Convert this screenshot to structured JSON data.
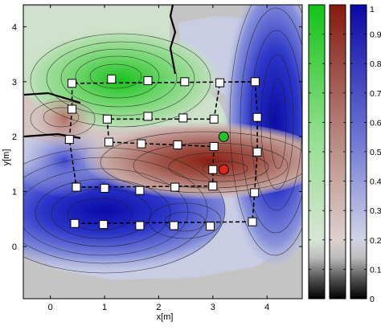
{
  "chart_data": {
    "type": "heatmap",
    "xlabel": "x[m]",
    "ylabel": "y[m]",
    "xlim": [
      -0.5,
      4.65
    ],
    "ylim": [
      -0.95,
      4.4
    ],
    "x_ticks": [
      "0",
      "1",
      "2",
      "3",
      "4"
    ],
    "y_ticks": [
      "0",
      "1",
      "2",
      "3",
      "4"
    ],
    "colorbar_ticks": [
      "0",
      "0.1",
      "0.2",
      "0.3",
      "0.4",
      "0.5",
      "0.6",
      "0.7",
      "0.8",
      "0.9",
      "1"
    ],
    "colormaps": [
      {
        "name": "green",
        "top": "#16c41a"
      },
      {
        "name": "brown",
        "top": "#8a1d10"
      },
      {
        "name": "blue",
        "top": "#0b0aa8"
      }
    ],
    "regions": [
      {
        "name": "green",
        "peak": 1.0
      },
      {
        "name": "brown",
        "peak": 1.0
      },
      {
        "name": "blue",
        "peak": 1.0
      }
    ],
    "waypoints": [
      {
        "x": 0.4,
        "y": 2.97
      },
      {
        "x": 1.13,
        "y": 3.05
      },
      {
        "x": 1.8,
        "y": 3.02
      },
      {
        "x": 2.48,
        "y": 3.0
      },
      {
        "x": 3.13,
        "y": 2.98
      },
      {
        "x": 3.78,
        "y": 3.0
      },
      {
        "x": 0.4,
        "y": 2.5
      },
      {
        "x": 3.82,
        "y": 2.35
      },
      {
        "x": 1.05,
        "y": 2.32
      },
      {
        "x": 1.8,
        "y": 2.37
      },
      {
        "x": 2.45,
        "y": 2.34
      },
      {
        "x": 3.02,
        "y": 2.32
      },
      {
        "x": 0.35,
        "y": 1.95
      },
      {
        "x": 1.08,
        "y": 1.9
      },
      {
        "x": 1.68,
        "y": 1.87
      },
      {
        "x": 2.35,
        "y": 1.85
      },
      {
        "x": 3.02,
        "y": 1.82
      },
      {
        "x": 3.82,
        "y": 1.72
      },
      {
        "x": 3.0,
        "y": 1.4
      },
      {
        "x": 0.48,
        "y": 1.08
      },
      {
        "x": 1.0,
        "y": 1.06
      },
      {
        "x": 1.65,
        "y": 1.02
      },
      {
        "x": 2.3,
        "y": 1.08
      },
      {
        "x": 3.0,
        "y": 1.1
      },
      {
        "x": 3.77,
        "y": 0.98
      },
      {
        "x": 0.45,
        "y": 0.42
      },
      {
        "x": 0.98,
        "y": 0.4
      },
      {
        "x": 1.65,
        "y": 0.38
      },
      {
        "x": 2.28,
        "y": 0.38
      },
      {
        "x": 2.95,
        "y": 0.37
      },
      {
        "x": 3.73,
        "y": 0.45
      }
    ],
    "path": [
      [
        0.45,
        0.42
      ],
      [
        3.73,
        0.45
      ],
      [
        3.77,
        0.98
      ],
      [
        3.82,
        1.72
      ],
      [
        3.82,
        2.35
      ],
      [
        3.78,
        3.0
      ],
      [
        0.4,
        2.97
      ],
      [
        0.4,
        2.5
      ],
      [
        0.35,
        1.95
      ],
      [
        0.48,
        1.08
      ],
      [
        3.0,
        1.1
      ],
      [
        3.0,
        1.4
      ],
      [
        3.02,
        1.82
      ],
      [
        1.08,
        1.9
      ],
      [
        1.05,
        2.32
      ],
      [
        3.02,
        2.32
      ],
      [
        3.13,
        2.98
      ]
    ],
    "markers": [
      {
        "name": "green",
        "x": 3.2,
        "y": 2.0,
        "color": "#22c425"
      },
      {
        "name": "red",
        "x": 3.2,
        "y": 1.4,
        "color": "#e0241a"
      }
    ]
  }
}
